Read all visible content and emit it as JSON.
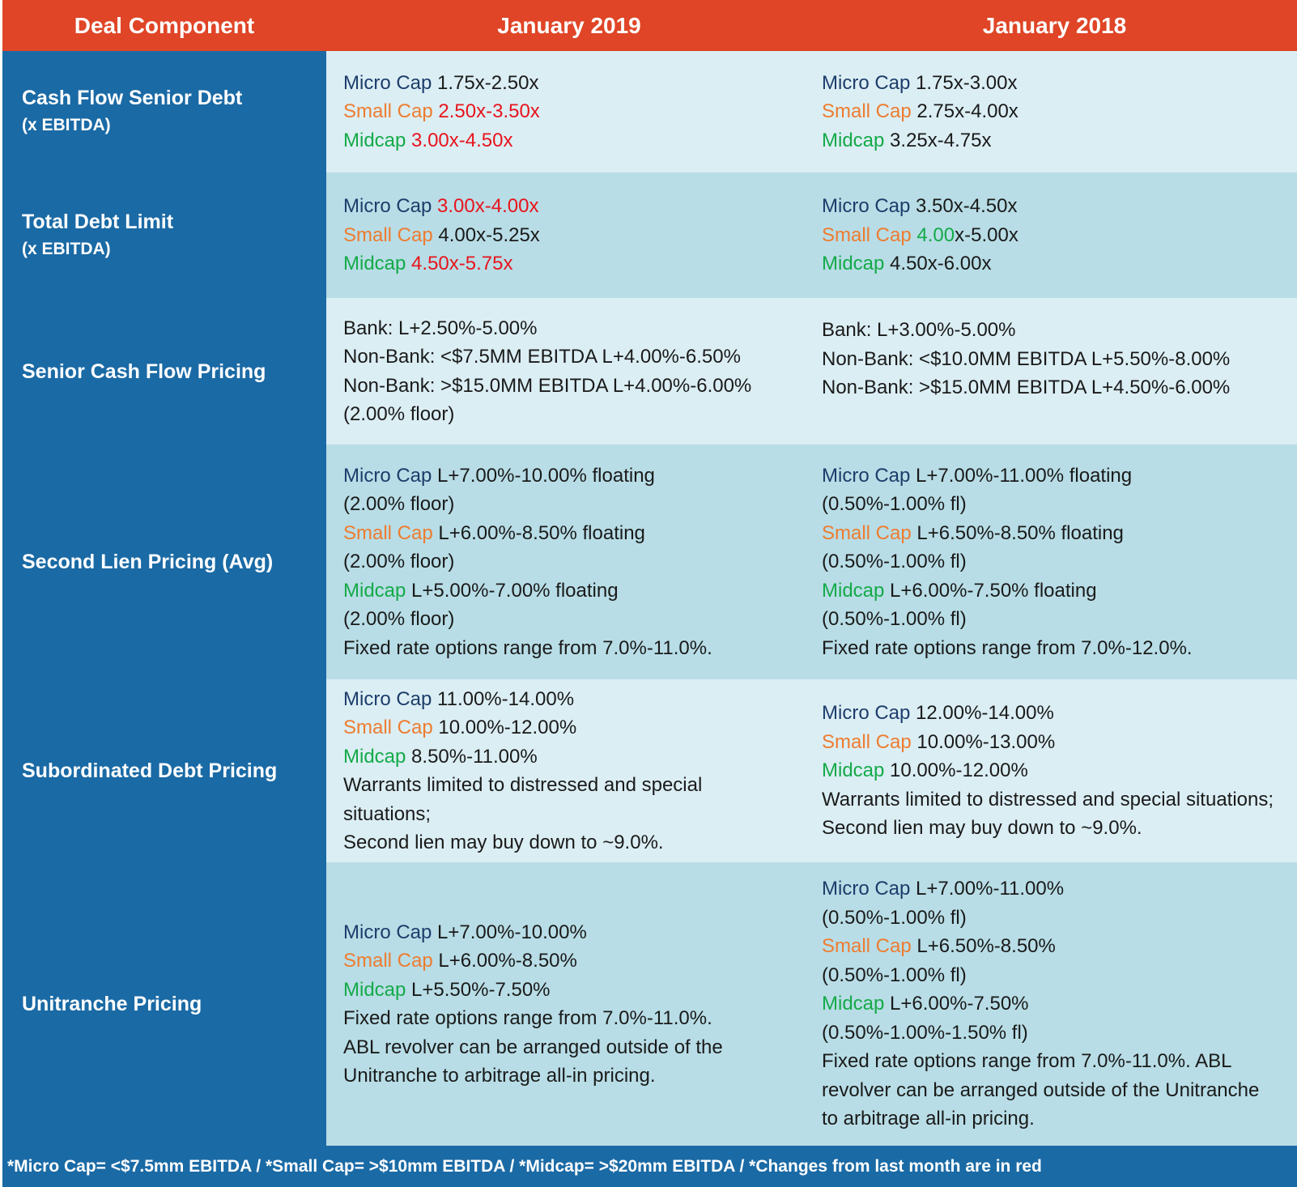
{
  "header": {
    "col1": "Deal Component",
    "col2": "January 2019",
    "col3": "January 2018"
  },
  "colors": {
    "header_bg": "#df4526",
    "label_bg": "#1a6aa5",
    "row_light": "#dbeef4",
    "row_dark": "#b8dde6",
    "micro_cap": "#1d3d6b",
    "small_cap": "#ee7c30",
    "midcap": "#14aa48",
    "changed_red": "#e8141c"
  },
  "terms": {
    "micro": "Micro Cap",
    "small": "Small Cap",
    "mid": "Midcap"
  },
  "rows": [
    {
      "label": "Cash Flow Senior Debt",
      "sublabel": "(x EBITDA)",
      "jan2019": {
        "micro": "1.75x-2.50x",
        "small": "2.50x-3.50x",
        "mid": "3.00x-4.50x"
      },
      "jan2018": {
        "micro": "1.75x-3.00x",
        "small": "2.75x-4.00x",
        "mid": "3.25x-4.75x"
      }
    },
    {
      "label": "Total Debt Limit",
      "sublabel": "(x EBITDA)",
      "jan2019": {
        "micro": "3.00x-4.00x",
        "small": "4.00x-5.25x",
        "mid": "4.50x-5.75x"
      },
      "jan2018": {
        "micro": "3.50x-4.50x",
        "small_a": "4.00",
        "small_b": "x-5.00x",
        "mid": "4.50x-6.00x"
      }
    },
    {
      "label": "Senior Cash Flow Pricing",
      "jan2019": [
        "Bank: L+2.50%-5.00%",
        "Non-Bank: <$7.5MM EBITDA L+4.00%-6.50%",
        "Non-Bank: >$15.0MM EBITDA L+4.00%-6.00%",
        "(2.00% floor)"
      ],
      "jan2018": [
        "Bank: L+3.00%-5.00%",
        "Non-Bank: <$10.0MM EBITDA L+5.50%-8.00%",
        "Non-Bank: >$15.0MM EBITDA L+4.50%-6.00%"
      ]
    },
    {
      "label": "Second Lien Pricing (Avg)",
      "jan2019": {
        "micro": "L+7.00%-10.00% floating",
        "micro_floor": "(2.00% floor)",
        "small": "L+6.00%-8.50% floating",
        "small_floor": "(2.00% floor)",
        "mid": "L+5.00%-7.00% floating",
        "mid_floor": "(2.00% floor)",
        "fixed": "Fixed rate options range from 7.0%-11.0%."
      },
      "jan2018": {
        "micro": "L+7.00%-11.00% floating",
        "micro_floor": "(0.50%-1.00% fl)",
        "small": "L+6.50%-8.50% floating",
        "small_floor": "(0.50%-1.00% fl)",
        "mid": "L+6.00%-7.50% floating",
        "mid_floor": "(0.50%-1.00% fl)",
        "fixed": "Fixed rate options range from 7.0%-12.0%."
      }
    },
    {
      "label": "Subordinated Debt Pricing",
      "jan2019": {
        "micro": "11.00%-14.00%",
        "small": "10.00%-12.00%",
        "mid": "8.50%-11.00%",
        "note1": "Warrants limited to distressed and special",
        "note2": "situations;",
        "note3": "Second lien may buy down to ~9.0%."
      },
      "jan2018": {
        "micro": "12.00%-14.00%",
        "small": "10.00%-13.00%",
        "mid": "10.00%-12.00%",
        "note1": "Warrants limited to distressed and special situations;",
        "note2": "Second lien may buy down to ~9.0%."
      }
    },
    {
      "label": "Unitranche Pricing",
      "jan2019": {
        "micro": "L+7.00%-10.00%",
        "small": "L+6.00%-8.50%",
        "mid": "L+5.50%-7.50%",
        "note1": "Fixed rate options range from 7.0%-11.0%.",
        "note2": "ABL revolver can be arranged outside of the",
        "note3": "Unitranche to arbitrage all-in pricing."
      },
      "jan2018": {
        "micro": "L+7.00%-11.00%",
        "micro_floor": "(0.50%-1.00% fl)",
        "small": "L+6.50%-8.50%",
        "small_floor": "(0.50%-1.00% fl)",
        "mid": "L+6.00%-7.50%",
        "mid_floor": "(0.50%-1.00%-1.50% fl)",
        "note1": "Fixed rate options range from 7.0%-11.0%. ABL",
        "note2": "revolver can be arranged outside of the Unitranche",
        "note3": "to arbitrage all-in pricing."
      }
    }
  ],
  "footer": "*Micro Cap= <$7.5mm EBITDA / *Small Cap= >$10mm EBITDA / *Midcap= >$20mm EBITDA / *Changes from last month are in red"
}
